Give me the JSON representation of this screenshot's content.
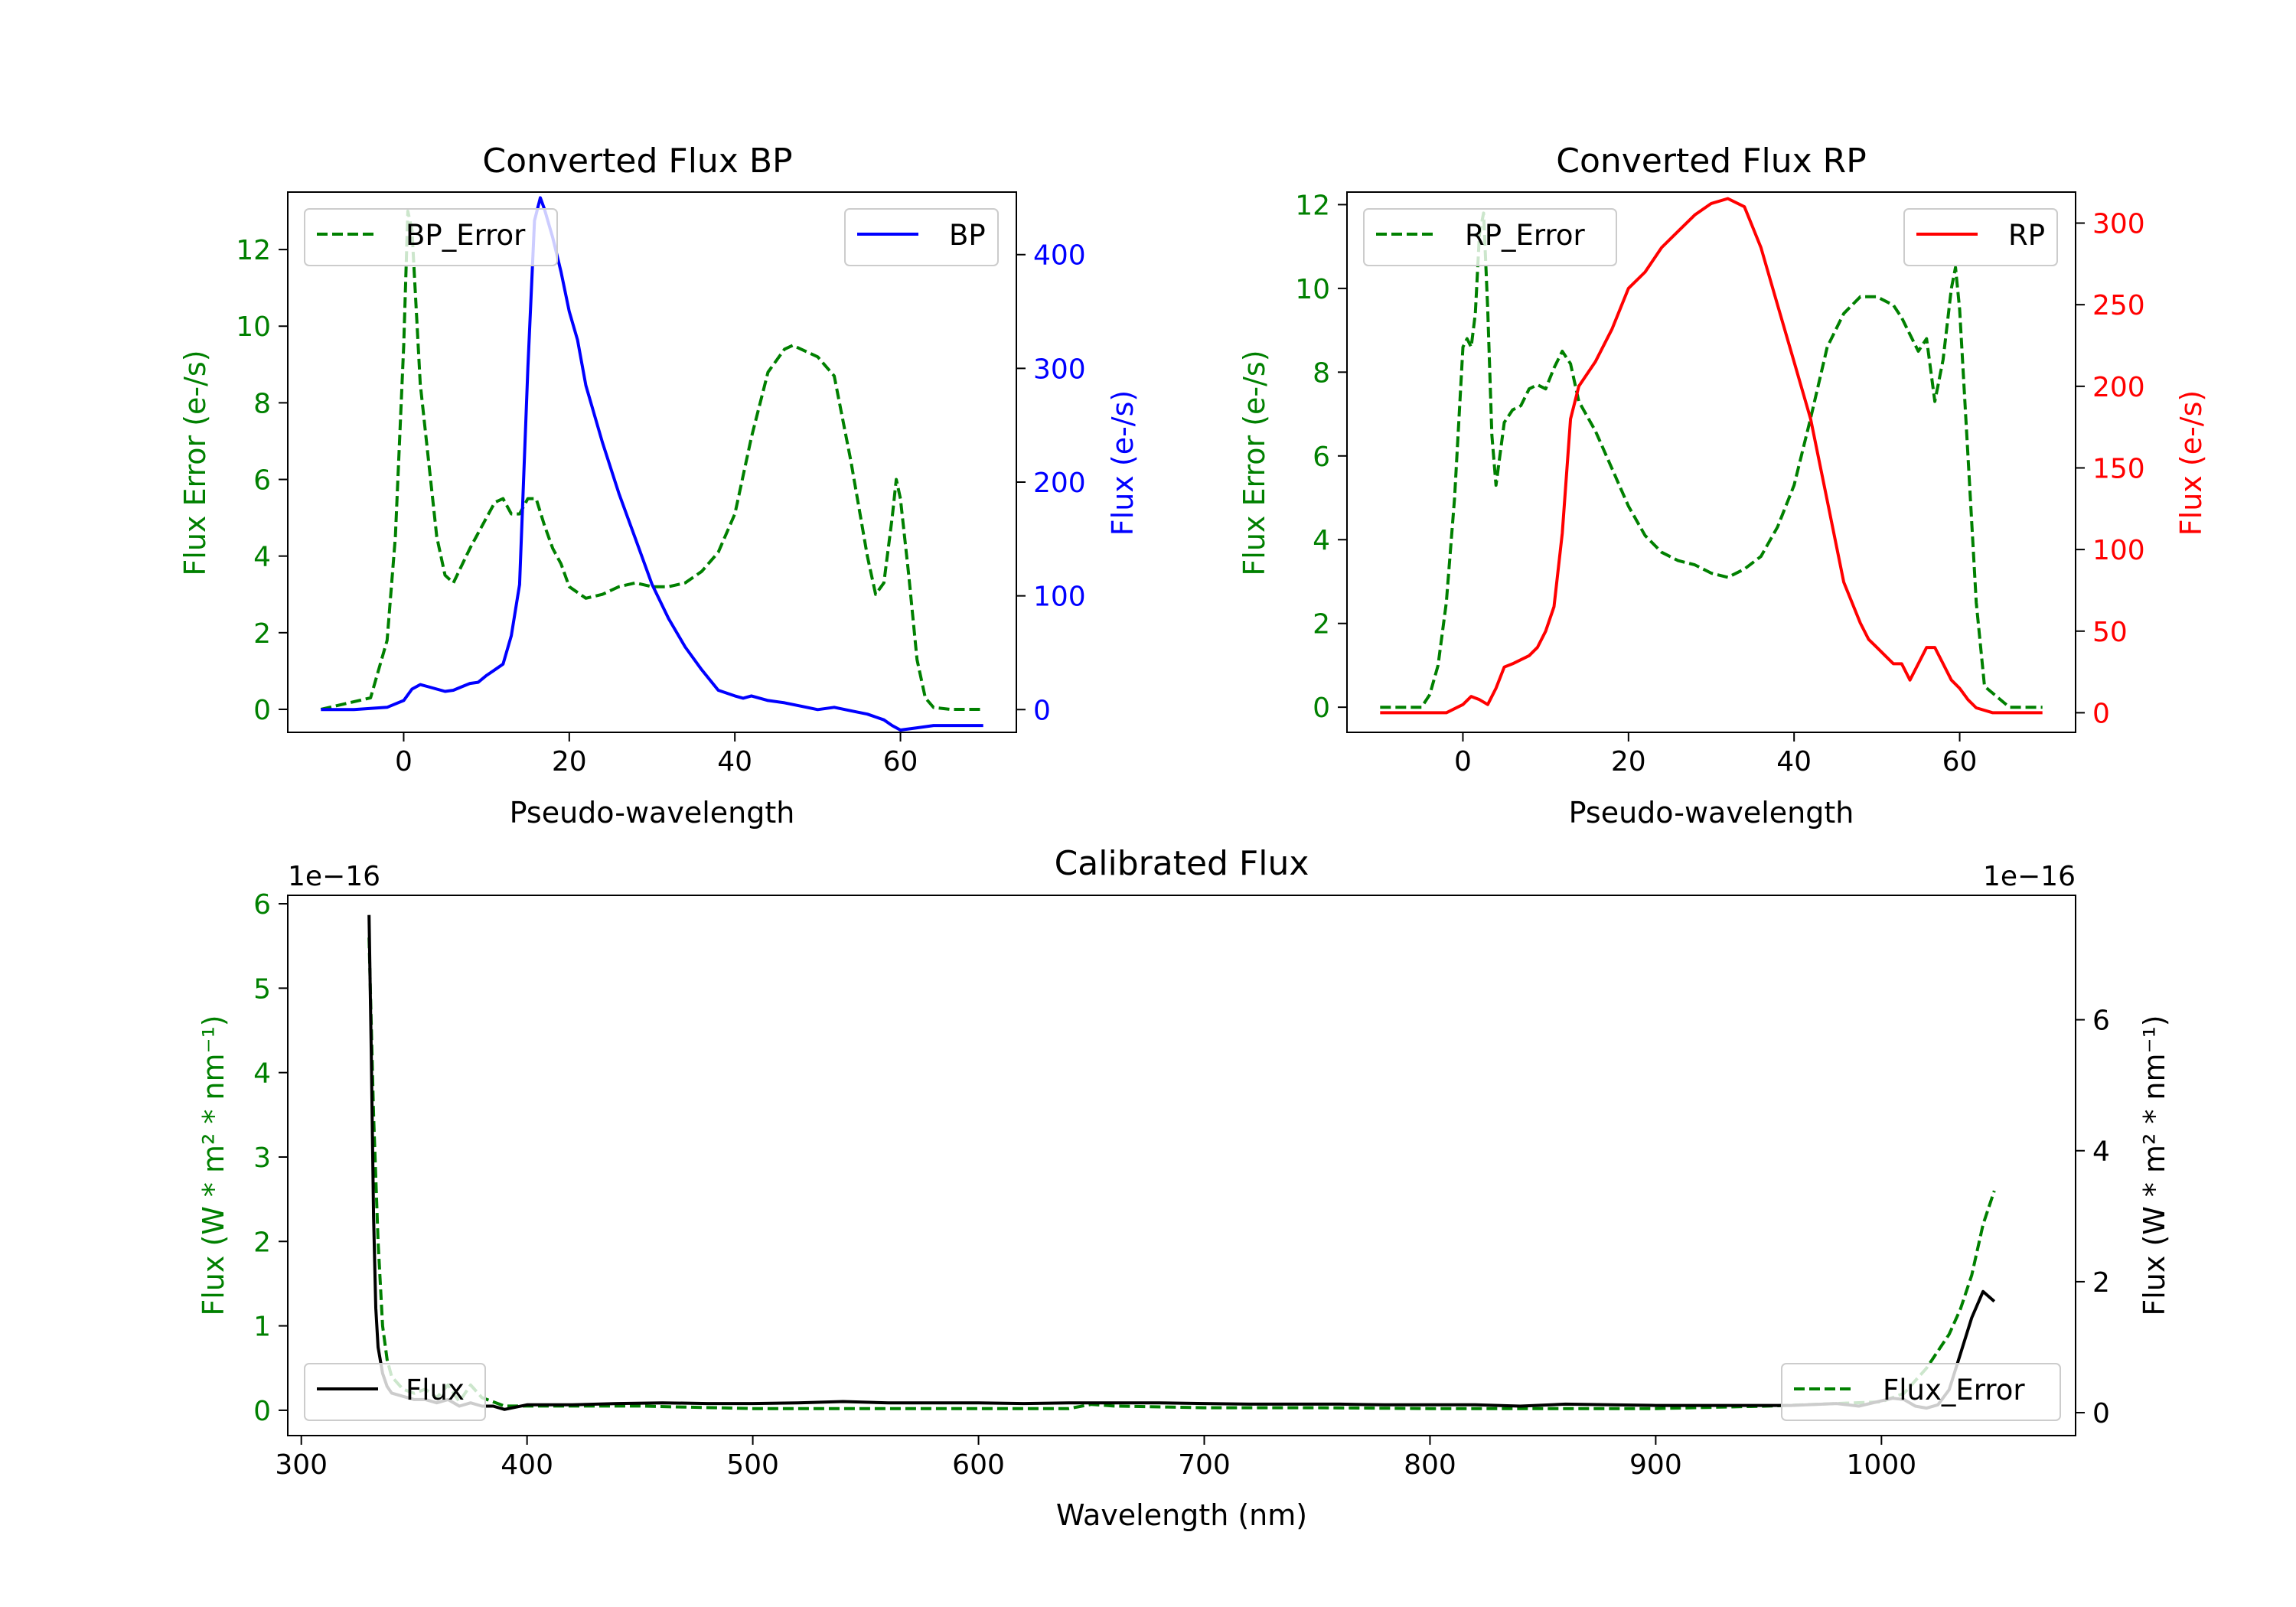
{
  "colors": {
    "bp": "#0000ff",
    "rp": "#ff0000",
    "error": "#008000",
    "flux": "#000000"
  },
  "chart_data": [
    {
      "id": "bp",
      "type": "line",
      "title": "Converted Flux BP",
      "xlabel": "Pseudo-wavelength",
      "ylabel_left": "Flux Error (e-/s)",
      "ylabel_right": "Flux (e-/s)",
      "xlim": [
        -14,
        74
      ],
      "ylim_left": [
        -0.6,
        13.5
      ],
      "ylim_right": [
        -20,
        455
      ],
      "xticks": [
        0,
        20,
        40,
        60
      ],
      "yticks_left": [
        0,
        2,
        4,
        6,
        8,
        10,
        12
      ],
      "yticks_right": [
        0,
        100,
        200,
        300,
        400
      ],
      "legend": [
        {
          "label": "BP_Error",
          "position": "upper left"
        },
        {
          "label": "BP",
          "position": "upper right"
        }
      ],
      "series": [
        {
          "name": "BP_Error",
          "axis": "left",
          "style": "dashed",
          "color": "green",
          "x": [
            -10,
            -4,
            -2,
            -1,
            0,
            0.5,
            1,
            2,
            3,
            4,
            5,
            6,
            8,
            10,
            11,
            12,
            13,
            14,
            15,
            16,
            17,
            18,
            19,
            20,
            22,
            24,
            26,
            28,
            30,
            32,
            34,
            36,
            38,
            40,
            42,
            44,
            46,
            47,
            48,
            50,
            52,
            54,
            56,
            57,
            58,
            59,
            59.5,
            60,
            61,
            62,
            63,
            64,
            66,
            70
          ],
          "y": [
            0,
            0.3,
            1.8,
            4.5,
            9.5,
            13.0,
            12.5,
            8.5,
            6.5,
            4.5,
            3.5,
            3.3,
            4.2,
            5.0,
            5.4,
            5.5,
            5.1,
            5.1,
            5.5,
            5.5,
            4.8,
            4.2,
            3.8,
            3.2,
            2.9,
            3.0,
            3.2,
            3.3,
            3.2,
            3.2,
            3.3,
            3.6,
            4.1,
            5.1,
            7.1,
            8.8,
            9.4,
            9.5,
            9.4,
            9.2,
            8.7,
            6.5,
            4.0,
            3.0,
            3.3,
            5.0,
            6.0,
            5.5,
            3.5,
            1.3,
            0.3,
            0.05,
            0,
            0
          ]
        },
        {
          "name": "BP",
          "axis": "right",
          "style": "solid",
          "color": "blue",
          "x": [
            -10,
            -6,
            -2,
            0,
            1,
            2,
            3,
            4,
            5,
            6,
            7,
            8,
            9,
            10,
            11,
            12,
            13,
            14,
            15,
            15.8,
            16.5,
            17,
            18,
            19,
            20,
            21,
            22,
            24,
            26,
            28,
            30,
            32,
            34,
            36,
            38,
            40,
            41,
            42,
            44,
            46,
            48,
            50,
            52,
            54,
            56,
            58,
            59,
            60,
            62,
            64,
            66,
            70
          ],
          "y": [
            0,
            0,
            2,
            8,
            18,
            22,
            20,
            18,
            16,
            17,
            20,
            23,
            24,
            30,
            35,
            40,
            65,
            110,
            300,
            430,
            450,
            440,
            415,
            385,
            350,
            325,
            285,
            235,
            190,
            150,
            110,
            80,
            55,
            35,
            17,
            12,
            10,
            12,
            8,
            6,
            3,
            0,
            2,
            -1,
            -4,
            -9,
            -14,
            -18,
            -16,
            -14,
            -14,
            -14
          ]
        }
      ]
    },
    {
      "id": "rp",
      "type": "line",
      "title": "Converted Flux RP",
      "xlabel": "Pseudo-wavelength",
      "ylabel_left": "Flux Error (e-/s)",
      "ylabel_right": "Flux (e-/s)",
      "xlim": [
        -14,
        74
      ],
      "ylim_left": [
        -0.6,
        12.3
      ],
      "ylim_right": [
        -12,
        319
      ],
      "xticks": [
        0,
        20,
        40,
        60
      ],
      "yticks_left": [
        0,
        2,
        4,
        6,
        8,
        10,
        12
      ],
      "yticks_right": [
        0,
        50,
        100,
        150,
        200,
        250,
        300
      ],
      "legend": [
        {
          "label": "RP_Error",
          "position": "upper left"
        },
        {
          "label": "RP",
          "position": "upper right"
        }
      ],
      "series": [
        {
          "name": "RP_Error",
          "axis": "left",
          "style": "dashed",
          "color": "green",
          "x": [
            -10,
            -5,
            -4,
            -3,
            -2,
            -1,
            0,
            0.5,
            1,
            1.5,
            2,
            2.5,
            3,
            3.5,
            4,
            5,
            6,
            7,
            8,
            9,
            10,
            11,
            12,
            13,
            14,
            16,
            18,
            20,
            22,
            24,
            26,
            28,
            30,
            32,
            34,
            36,
            38,
            40,
            42,
            44,
            46,
            48,
            50,
            52,
            53,
            54,
            55,
            56,
            57,
            58,
            59,
            59.5,
            60,
            61,
            62,
            63,
            66,
            70
          ],
          "y": [
            0,
            0,
            0.3,
            1.0,
            2.5,
            5.0,
            8.6,
            8.8,
            8.6,
            9.4,
            11.3,
            11.8,
            9.5,
            6.5,
            5.3,
            6.8,
            7.1,
            7.2,
            7.6,
            7.7,
            7.6,
            8.1,
            8.5,
            8.2,
            7.3,
            6.6,
            5.7,
            4.8,
            4.1,
            3.7,
            3.5,
            3.4,
            3.2,
            3.1,
            3.3,
            3.6,
            4.3,
            5.3,
            6.9,
            8.6,
            9.4,
            9.8,
            9.8,
            9.6,
            9.3,
            8.9,
            8.5,
            8.8,
            7.3,
            8.3,
            10.0,
            10.5,
            9.5,
            6.0,
            2.5,
            0.5,
            0,
            0
          ]
        },
        {
          "name": "RP",
          "axis": "right",
          "style": "solid",
          "color": "red",
          "x": [
            -10,
            -2,
            0,
            1,
            2,
            3,
            4,
            5,
            6,
            8,
            9,
            10,
            11,
            12,
            13,
            14,
            16,
            18,
            20,
            22,
            24,
            26,
            28,
            30,
            32,
            34,
            36,
            38,
            40,
            42,
            44,
            46,
            48,
            49,
            50,
            51,
            52,
            53,
            54,
            55,
            56,
            57,
            58,
            59,
            60,
            61,
            62,
            64,
            66,
            70
          ],
          "y": [
            0,
            0,
            5,
            10,
            8,
            5,
            15,
            28,
            30,
            35,
            40,
            50,
            65,
            110,
            180,
            200,
            215,
            235,
            260,
            270,
            285,
            295,
            305,
            312,
            315,
            310,
            285,
            250,
            215,
            180,
            130,
            80,
            55,
            45,
            40,
            35,
            30,
            30,
            20,
            30,
            40,
            40,
            30,
            20,
            15,
            8,
            3,
            0,
            0,
            0
          ]
        }
      ]
    },
    {
      "id": "calibrated",
      "type": "line",
      "title": "Calibrated Flux",
      "xlabel": "Wavelength (nm)",
      "ylabel_left": "Flux (W * m² * nm⁻¹)",
      "ylabel_right": "Flux (W * m² * nm⁻¹)",
      "offset_left": "1e−16",
      "offset_right": "1e−16",
      "xlim": [
        294,
        1086
      ],
      "ylim_left": [
        -0.3,
        6.1
      ],
      "ylim_right": [
        -0.35,
        7.9
      ],
      "xticks": [
        300,
        400,
        500,
        600,
        700,
        800,
        900,
        1000
      ],
      "yticks_left": [
        0,
        1,
        2,
        3,
        4,
        5,
        6
      ],
      "yticks_right": [
        0,
        2,
        4,
        6
      ],
      "legend": [
        {
          "label": "Flux",
          "position": "lower left"
        },
        {
          "label": "Flux_Error",
          "position": "lower right"
        }
      ],
      "series": [
        {
          "name": "Flux_Error",
          "axis": "left",
          "style": "dashed",
          "color": "green",
          "x": [
            330,
            332,
            334,
            336,
            338,
            340,
            345,
            350,
            355,
            360,
            365,
            370,
            375,
            380,
            385,
            390,
            400,
            450,
            500,
            550,
            600,
            640,
            650,
            660,
            700,
            750,
            800,
            850,
            900,
            950,
            1000,
            1010,
            1020,
            1030,
            1035,
            1040,
            1045,
            1050
          ],
          "y": [
            5.6,
            3.5,
            2.0,
            1.0,
            0.6,
            0.4,
            0.25,
            0.2,
            0.25,
            0.15,
            0.3,
            0.1,
            0.3,
            0.15,
            0.1,
            0.05,
            0.05,
            0.05,
            0.02,
            0.02,
            0.02,
            0.02,
            0.07,
            0.05,
            0.03,
            0.03,
            0.02,
            0.02,
            0.02,
            0.05,
            0.1,
            0.2,
            0.5,
            0.9,
            1.2,
            1.6,
            2.2,
            2.6
          ]
        },
        {
          "name": "Flux",
          "axis": "right",
          "style": "solid",
          "color": "black",
          "x": [
            330,
            331,
            332,
            333,
            334,
            336,
            338,
            340,
            345,
            350,
            355,
            360,
            365,
            370,
            375,
            380,
            385,
            390,
            400,
            420,
            440,
            460,
            480,
            500,
            520,
            540,
            560,
            580,
            600,
            620,
            640,
            660,
            680,
            700,
            720,
            740,
            760,
            780,
            800,
            820,
            840,
            860,
            880,
            900,
            920,
            940,
            960,
            980,
            990,
            1000,
            1005,
            1010,
            1015,
            1020,
            1025,
            1030,
            1035,
            1040,
            1045,
            1050
          ],
          "y": [
            7.6,
            5.5,
            3.0,
            1.6,
            1.0,
            0.6,
            0.4,
            0.3,
            0.25,
            0.2,
            0.2,
            0.15,
            0.2,
            0.1,
            0.15,
            0.1,
            0.1,
            0.05,
            0.12,
            0.12,
            0.14,
            0.15,
            0.14,
            0.14,
            0.15,
            0.17,
            0.15,
            0.15,
            0.15,
            0.14,
            0.15,
            0.15,
            0.15,
            0.14,
            0.13,
            0.13,
            0.13,
            0.12,
            0.12,
            0.12,
            0.1,
            0.13,
            0.12,
            0.11,
            0.11,
            0.11,
            0.11,
            0.14,
            0.1,
            0.18,
            0.22,
            0.2,
            0.1,
            0.07,
            0.12,
            0.35,
            0.9,
            1.45,
            1.85,
            1.7
          ]
        }
      ]
    }
  ]
}
